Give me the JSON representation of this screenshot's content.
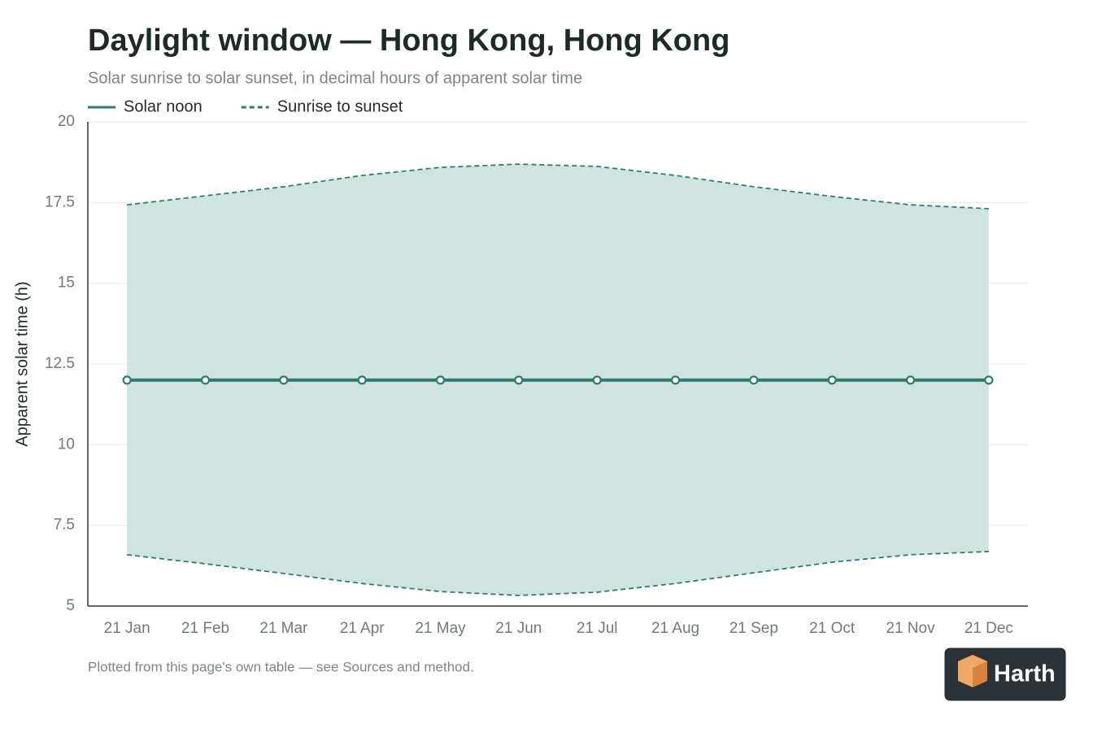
{
  "chart_data": {
    "type": "band-line",
    "title": "Daylight window — Hong Kong, Hong Kong",
    "subtitle": "Solar sunrise to solar sunset, in decimal hours of apparent solar time",
    "y_label": "Apparent solar time (h)",
    "note": "Plotted from this page's own table — see Sources and method.",
    "categories": [
      "21 Jan",
      "21 Feb",
      "21 Mar",
      "21 Apr",
      "21 May",
      "21 Jun",
      "21 Jul",
      "21 Aug",
      "21 Sep",
      "21 Oct",
      "21 Nov",
      "21 Dec"
    ],
    "series": [
      {
        "name": "Solar noon",
        "color": "#2e7b72",
        "style": "solid",
        "values": [
          12,
          12,
          12,
          12,
          12,
          12,
          12,
          12,
          12,
          12,
          12,
          12
        ]
      },
      {
        "name": "Sunrise to sunset",
        "color": "#2e7b72",
        "fill": "#cfe4e0",
        "style": "dashed",
        "low": [
          6.59,
          6.31,
          6.01,
          5.7,
          5.45,
          5.33,
          5.43,
          5.7,
          6.03,
          6.36,
          6.59,
          6.69
        ],
        "high": [
          17.43,
          17.71,
          17.99,
          18.34,
          18.59,
          18.69,
          18.62,
          18.34,
          17.99,
          17.69,
          17.43,
          17.31
        ]
      }
    ],
    "ylim": [
      5,
      20
    ],
    "yticks": [
      5,
      7.5,
      10,
      12.5,
      15,
      17.5,
      20
    ],
    "grid": true
  },
  "brand": {
    "name": "Harth"
  }
}
